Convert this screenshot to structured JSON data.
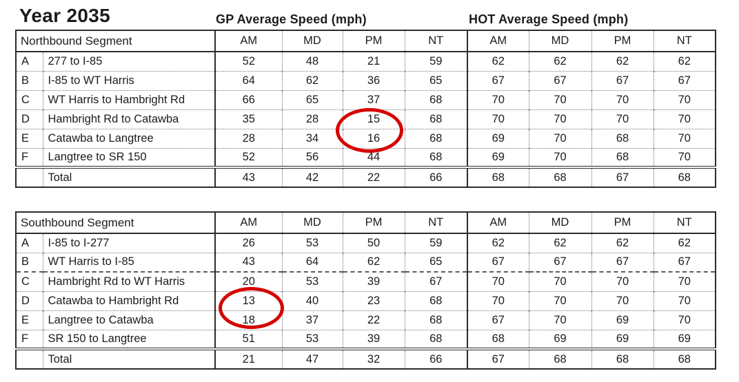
{
  "title": "Year 2035",
  "gp_label": "GP Average Speed (mph)",
  "hot_label": "HOT Average Speed (mph)",
  "periods": [
    "AM",
    "MD",
    "PM",
    "NT",
    "AM",
    "MD",
    "PM",
    "NT"
  ],
  "tables": [
    {
      "name": "northbound",
      "segment_header": "Northbound Segment",
      "rows": [
        {
          "id": "A",
          "segment": "277 to I-85",
          "values": [
            "52",
            "48",
            "21",
            "59",
            "62",
            "62",
            "62",
            "62"
          ]
        },
        {
          "id": "B",
          "segment": "I-85 to WT Harris",
          "values": [
            "64",
            "62",
            "36",
            "65",
            "67",
            "67",
            "67",
            "67"
          ]
        },
        {
          "id": "C",
          "segment": "WT Harris to Hambright Rd",
          "values": [
            "66",
            "65",
            "37",
            "68",
            "70",
            "70",
            "70",
            "70"
          ]
        },
        {
          "id": "D",
          "segment": "Hambright Rd to Catawba",
          "values": [
            "35",
            "28",
            "15",
            "68",
            "70",
            "70",
            "70",
            "70"
          ]
        },
        {
          "id": "E",
          "segment": "Catawba to Langtree",
          "values": [
            "28",
            "34",
            "16",
            "68",
            "69",
            "70",
            "68",
            "70"
          ]
        },
        {
          "id": "F",
          "segment": "Langtree to SR 150",
          "values": [
            "52",
            "56",
            "44",
            "68",
            "69",
            "70",
            "68",
            "70"
          ]
        }
      ],
      "total": {
        "label": "Total",
        "values": [
          "43",
          "42",
          "22",
          "66",
          "68",
          "68",
          "67",
          "68"
        ]
      }
    },
    {
      "name": "southbound",
      "segment_header": "Southbound Segment",
      "rows": [
        {
          "id": "A",
          "segment": "I-85 to I-277",
          "values": [
            "26",
            "53",
            "50",
            "59",
            "62",
            "62",
            "62",
            "62"
          ]
        },
        {
          "id": "B",
          "segment": "WT Harris to I-85",
          "values": [
            "43",
            "64",
            "62",
            "65",
            "67",
            "67",
            "67",
            "67"
          ]
        },
        {
          "id": "C",
          "segment": "Hambright Rd to WT Harris",
          "values": [
            "20",
            "53",
            "39",
            "67",
            "70",
            "70",
            "70",
            "70"
          ]
        },
        {
          "id": "D",
          "segment": "Catawba to Hambright Rd",
          "values": [
            "13",
            "40",
            "23",
            "68",
            "70",
            "70",
            "70",
            "70"
          ]
        },
        {
          "id": "E",
          "segment": "Langtree to Catawba",
          "values": [
            "18",
            "37",
            "22",
            "68",
            "67",
            "70",
            "69",
            "70"
          ]
        },
        {
          "id": "F",
          "segment": "SR 150 to Langtree",
          "values": [
            "51",
            "53",
            "39",
            "68",
            "68",
            "69",
            "69",
            "69"
          ]
        }
      ],
      "total": {
        "label": "Total",
        "values": [
          "21",
          "47",
          "32",
          "66",
          "67",
          "68",
          "68",
          "68"
        ]
      }
    }
  ],
  "annotations": [
    {
      "shape": "ellipse",
      "color": "#d60000",
      "table": "northbound",
      "column": "GP PM",
      "rows": [
        "D",
        "E"
      ],
      "circled_values": [
        "15",
        "16"
      ]
    },
    {
      "shape": "ellipse",
      "color": "#d60000",
      "table": "southbound",
      "column": "GP AM",
      "rows": [
        "D",
        "E"
      ],
      "circled_values": [
        "13",
        "18"
      ]
    }
  ]
}
